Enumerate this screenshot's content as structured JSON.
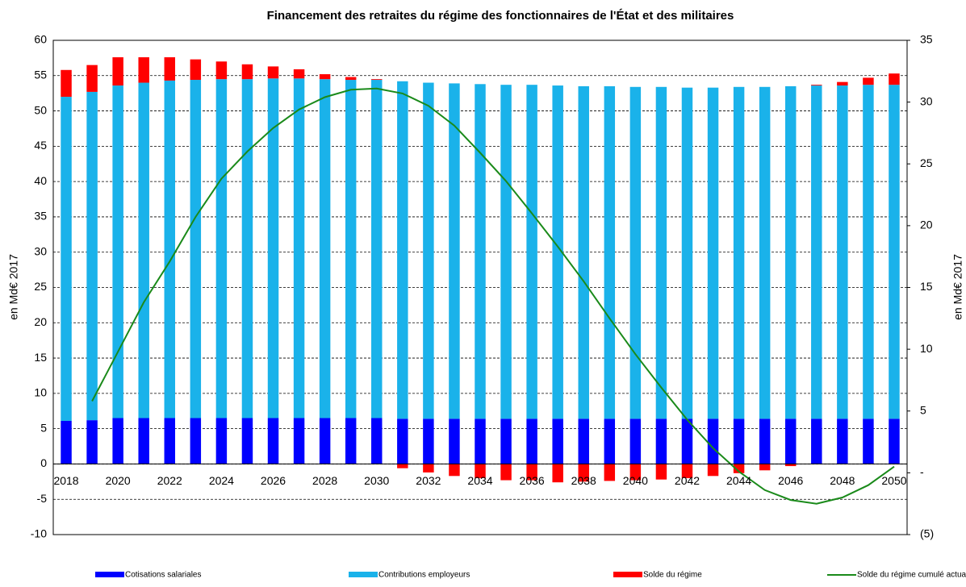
{
  "chart_data": {
    "type": "bar",
    "stacked": true,
    "title": "Financement  des retraites du régime des fonctionnaires  de l'État et des militaires",
    "ylabel": "en Md€ 2017",
    "y2label": "en Md€ 2017",
    "categories": [
      "2018",
      null,
      "2020",
      null,
      "2022",
      null,
      "2024",
      null,
      "2026",
      null,
      "2028",
      null,
      "2030",
      null,
      "2032",
      null,
      "2034",
      null,
      "2036",
      null,
      "2038",
      null,
      "2040",
      null,
      "2042",
      null,
      "2044",
      null,
      "2046",
      null,
      "2048",
      null,
      "2050"
    ],
    "ylim": [
      -10,
      60
    ],
    "yticks": [
      -10,
      -5,
      0,
      5,
      10,
      15,
      20,
      25,
      30,
      35,
      40,
      45,
      50,
      55,
      60
    ],
    "y2lim": [
      -5,
      35
    ],
    "y2ticks": [
      {
        "value": -5,
        "label": "(5)"
      },
      {
        "value": 0,
        "label": "-"
      },
      5,
      10,
      15,
      20,
      25,
      30,
      35
    ],
    "grid": true,
    "series": [
      {
        "name": "Cotisations salariales",
        "color": "#0000ff",
        "values": [
          6.1,
          6.2,
          6.5,
          6.5,
          6.5,
          6.5,
          6.5,
          6.5,
          6.5,
          6.5,
          6.5,
          6.5,
          6.5,
          6.4,
          6.4,
          6.4,
          6.4,
          6.4,
          6.4,
          6.4,
          6.4,
          6.4,
          6.4,
          6.4,
          6.4,
          6.4,
          6.4,
          6.4,
          6.4,
          6.4,
          6.4,
          6.4,
          6.4
        ]
      },
      {
        "name": "Contributions employeurs",
        "color": "#1ab2ea",
        "values": [
          45.9,
          46.5,
          47.1,
          47.5,
          47.8,
          47.9,
          48.0,
          48.0,
          48.1,
          48.1,
          48.0,
          47.9,
          47.9,
          47.8,
          47.6,
          47.5,
          47.4,
          47.3,
          47.3,
          47.2,
          47.1,
          47.1,
          47.0,
          47.0,
          46.9,
          46.9,
          47.0,
          47.0,
          47.1,
          47.2,
          47.2,
          47.3,
          47.3
        ]
      },
      {
        "name": "Solde du régime",
        "color": "#ff0000",
        "values": [
          3.8,
          3.8,
          4.0,
          3.6,
          3.3,
          2.9,
          2.5,
          2.1,
          1.7,
          1.3,
          0.7,
          0.4,
          0.1,
          -0.6,
          -1.2,
          -1.7,
          -2.0,
          -2.3,
          -2.3,
          -2.6,
          -2.5,
          -2.4,
          -2.3,
          -2.2,
          -2.0,
          -1.7,
          -1.3,
          -0.9,
          -0.3,
          0.1,
          0.5,
          1.0,
          1.6
        ]
      },
      {
        "name": "Solde du régime cumulé actualisé (échelle de droite)",
        "color": "#1a8a1a",
        "type": "line",
        "axis": "y2",
        "values": [
          null,
          5.8,
          9.8,
          13.8,
          17.1,
          20.7,
          23.8,
          26.0,
          27.9,
          29.4,
          30.4,
          31.0,
          31.1,
          30.7,
          29.7,
          28.1,
          25.9,
          23.6,
          21.0,
          18.3,
          15.5,
          12.5,
          9.6,
          6.9,
          4.3,
          2.0,
          0.1,
          -1.4,
          -2.2,
          -2.5,
          -2.0,
          -1.0,
          0.5
        ]
      }
    ]
  }
}
